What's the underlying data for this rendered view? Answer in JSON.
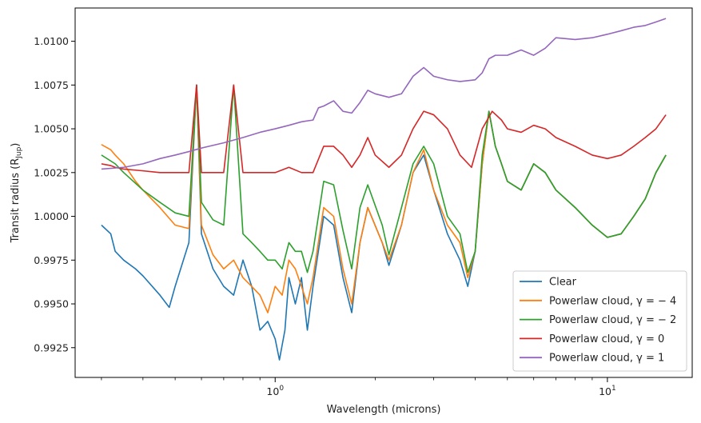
{
  "chart_data": {
    "type": "line",
    "xlabel": "Wavelength (microns)",
    "ylabel": "Transit radius (R_Jup)",
    "ylabel_main": "Transit radius (R",
    "ylabel_sub": "Jup",
    "ylabel_close": ")",
    "xscale": "log",
    "xlim": [
      0.25,
      18
    ],
    "ylim": [
      0.9908,
      1.0119
    ],
    "x_tick_labels": [
      {
        "value": 1,
        "base": "10",
        "exp": "0"
      },
      {
        "value": 10,
        "base": "10",
        "exp": "1"
      }
    ],
    "y_ticks": [
      0.9925,
      0.995,
      0.9975,
      1.0,
      1.0025,
      1.005,
      1.0075,
      1.01
    ],
    "y_tick_labels": [
      "0.9925",
      "0.9950",
      "0.9975",
      "1.0000",
      "1.0025",
      "1.0050",
      "1.0075",
      "1.0100"
    ],
    "grid": false,
    "legend_position": "lower-right",
    "series": [
      {
        "name": "Clear",
        "color": "#1f77b4",
        "x": [
          0.3,
          0.32,
          0.33,
          0.35,
          0.38,
          0.4,
          0.45,
          0.48,
          0.5,
          0.55,
          0.58,
          0.6,
          0.65,
          0.7,
          0.75,
          0.8,
          0.85,
          0.9,
          0.95,
          1.0,
          1.03,
          1.07,
          1.1,
          1.15,
          1.2,
          1.25,
          1.3,
          1.4,
          1.5,
          1.6,
          1.7,
          1.8,
          1.9,
          2.1,
          2.2,
          2.4,
          2.6,
          2.8,
          3.0,
          3.3,
          3.6,
          3.8,
          4.0,
          4.2,
          4.4,
          4.6,
          4.8,
          5.0,
          5.5,
          6.0,
          6.5,
          7.0,
          8.0,
          9.0,
          10.0,
          11.0,
          12.0,
          13.0,
          14.0,
          15.0
        ],
        "y": [
          0.9995,
          0.999,
          0.998,
          0.9975,
          0.997,
          0.9966,
          0.9955,
          0.9948,
          0.996,
          0.9985,
          1.0075,
          0.999,
          0.997,
          0.996,
          0.9955,
          0.9975,
          0.996,
          0.9935,
          0.994,
          0.993,
          0.9918,
          0.9935,
          0.9965,
          0.995,
          0.9965,
          0.9935,
          0.996,
          1.0,
          0.9995,
          0.9965,
          0.9945,
          0.9985,
          1.0005,
          0.9985,
          0.9972,
          0.9995,
          1.0025,
          1.0035,
          1.0015,
          0.999,
          0.9975,
          0.996,
          0.998,
          1.003,
          1.006,
          1.004,
          1.003,
          1.002,
          1.0015,
          1.003,
          1.0025,
          1.0015,
          1.0005,
          0.9995,
          0.9988,
          0.999,
          1.0,
          1.001,
          1.0025,
          1.0035
        ]
      },
      {
        "name": "Powerlaw cloud, γ = − 4",
        "color": "#ff7f0e",
        "x": [
          0.3,
          0.32,
          0.33,
          0.35,
          0.38,
          0.4,
          0.45,
          0.5,
          0.55,
          0.58,
          0.6,
          0.65,
          0.7,
          0.75,
          0.8,
          0.85,
          0.9,
          0.95,
          1.0,
          1.05,
          1.1,
          1.15,
          1.2,
          1.25,
          1.3,
          1.4,
          1.5,
          1.6,
          1.7,
          1.8,
          1.9,
          2.1,
          2.2,
          2.4,
          2.6,
          2.8,
          3.0,
          3.3,
          3.6,
          3.8,
          4.0,
          4.2,
          4.4,
          4.6,
          4.8,
          5.0,
          5.5,
          6.0,
          6.5,
          7.0,
          8.0,
          9.0,
          10.0,
          11.0,
          12.0,
          13.0,
          14.0,
          15.0
        ],
        "y": [
          1.0041,
          1.0038,
          1.0035,
          1.003,
          1.002,
          1.0015,
          1.0005,
          0.9995,
          0.9993,
          1.0075,
          0.9995,
          0.9978,
          0.997,
          0.9975,
          0.9965,
          0.996,
          0.9955,
          0.9945,
          0.996,
          0.9955,
          0.9975,
          0.997,
          0.996,
          0.995,
          0.9965,
          1.0005,
          1.0,
          0.997,
          0.995,
          0.9985,
          1.0005,
          0.9985,
          0.9975,
          0.9995,
          1.0025,
          1.0038,
          1.0015,
          0.9995,
          0.9985,
          0.9965,
          0.998,
          1.003,
          1.006,
          1.004,
          1.003,
          1.002,
          1.0015,
          1.003,
          1.0025,
          1.0015,
          1.0005,
          0.9995,
          0.9988,
          0.999,
          1.0,
          1.001,
          1.0025,
          1.0035
        ]
      },
      {
        "name": "Powerlaw cloud, γ = − 2",
        "color": "#2ca02c",
        "x": [
          0.3,
          0.33,
          0.35,
          0.4,
          0.45,
          0.5,
          0.55,
          0.58,
          0.6,
          0.65,
          0.7,
          0.75,
          0.8,
          0.85,
          0.9,
          0.95,
          1.0,
          1.05,
          1.1,
          1.15,
          1.2,
          1.25,
          1.3,
          1.4,
          1.5,
          1.6,
          1.7,
          1.8,
          1.9,
          2.1,
          2.2,
          2.4,
          2.6,
          2.8,
          3.0,
          3.3,
          3.6,
          3.8,
          4.0,
          4.2,
          4.4,
          4.6,
          4.8,
          5.0,
          5.5,
          6.0,
          6.5,
          7.0,
          8.0,
          9.0,
          10.0,
          11.0,
          12.0,
          13.0,
          14.0,
          15.0
        ],
        "y": [
          1.0035,
          1.003,
          1.0025,
          1.0015,
          1.0008,
          1.0002,
          1.0,
          1.0075,
          1.0008,
          0.9998,
          0.9995,
          1.0075,
          0.999,
          0.9985,
          0.998,
          0.9975,
          0.9975,
          0.997,
          0.9985,
          0.998,
          0.998,
          0.9968,
          0.998,
          1.002,
          1.0018,
          0.9992,
          0.997,
          1.0005,
          1.0018,
          0.9995,
          0.9978,
          1.0005,
          1.003,
          1.004,
          1.003,
          1.0,
          0.999,
          0.9968,
          0.998,
          1.0035,
          1.006,
          1.004,
          1.003,
          1.002,
          1.0015,
          1.003,
          1.0025,
          1.0015,
          1.0005,
          0.9995,
          0.9988,
          0.999,
          1.0,
          1.001,
          1.0025,
          1.0035
        ]
      },
      {
        "name": "Powerlaw cloud, γ = 0",
        "color": "#d62728",
        "x": [
          0.3,
          0.32,
          0.33,
          0.35,
          0.4,
          0.45,
          0.5,
          0.55,
          0.58,
          0.6,
          0.7,
          0.75,
          0.8,
          0.9,
          1.0,
          1.1,
          1.2,
          1.3,
          1.4,
          1.5,
          1.6,
          1.7,
          1.8,
          1.9,
          2.0,
          2.2,
          2.4,
          2.6,
          2.8,
          3.0,
          3.3,
          3.6,
          3.9,
          4.2,
          4.5,
          4.8,
          5.0,
          5.5,
          6.0,
          6.5,
          7.0,
          8.0,
          9.0,
          10.0,
          11.0,
          12.0,
          13.0,
          14.0,
          15.0
        ],
        "y": [
          1.003,
          1.0029,
          1.0028,
          1.0027,
          1.0026,
          1.0025,
          1.0025,
          1.0025,
          1.0075,
          1.0025,
          1.0025,
          1.0075,
          1.0025,
          1.0025,
          1.0025,
          1.0028,
          1.0025,
          1.0025,
          1.004,
          1.004,
          1.0035,
          1.0028,
          1.0035,
          1.0045,
          1.0035,
          1.0028,
          1.0035,
          1.005,
          1.006,
          1.0058,
          1.005,
          1.0035,
          1.0028,
          1.005,
          1.006,
          1.0055,
          1.005,
          1.0048,
          1.0052,
          1.005,
          1.0045,
          1.004,
          1.0035,
          1.0033,
          1.0035,
          1.004,
          1.0045,
          1.005,
          1.0058
        ]
      },
      {
        "name": "Powerlaw cloud, γ = 1",
        "color": "#9467bd",
        "x": [
          0.3,
          0.35,
          0.4,
          0.45,
          0.5,
          0.55,
          0.6,
          0.7,
          0.8,
          0.9,
          1.0,
          1.1,
          1.2,
          1.3,
          1.35,
          1.4,
          1.5,
          1.6,
          1.7,
          1.8,
          1.9,
          2.0,
          2.2,
          2.4,
          2.6,
          2.8,
          3.0,
          3.3,
          3.6,
          4.0,
          4.2,
          4.4,
          4.6,
          5.0,
          5.5,
          6.0,
          6.5,
          7.0,
          8.0,
          9.0,
          10.0,
          11.0,
          12.0,
          13.0,
          14.0,
          15.0
        ],
        "y": [
          1.0027,
          1.0028,
          1.003,
          1.0033,
          1.0035,
          1.0037,
          1.0039,
          1.0042,
          1.0045,
          1.0048,
          1.005,
          1.0052,
          1.0054,
          1.0055,
          1.0062,
          1.0063,
          1.0066,
          1.006,
          1.0059,
          1.0065,
          1.0072,
          1.007,
          1.0068,
          1.007,
          1.008,
          1.0085,
          1.008,
          1.0078,
          1.0077,
          1.0078,
          1.0082,
          1.009,
          1.0092,
          1.0092,
          1.0095,
          1.0092,
          1.0096,
          1.0102,
          1.0101,
          1.0102,
          1.0104,
          1.0106,
          1.0108,
          1.0109,
          1.0111,
          1.0113
        ]
      }
    ]
  }
}
